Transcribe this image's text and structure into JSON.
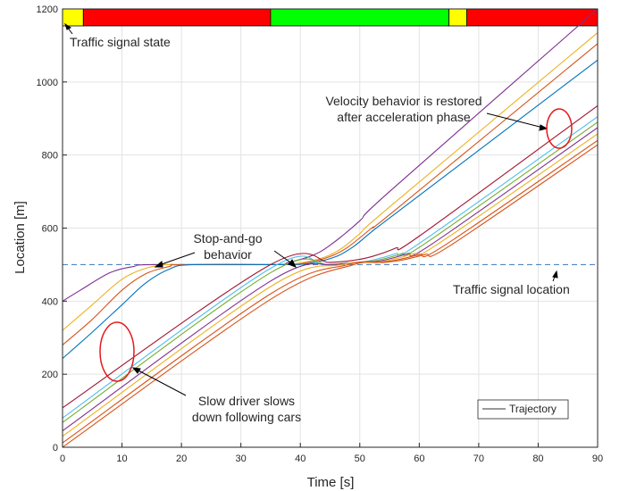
{
  "chart_data": {
    "type": "line",
    "title": "",
    "xlabel": "Time [s]",
    "ylabel": "Location [m]",
    "xlim": [
      0,
      90
    ],
    "ylim": [
      0,
      1200
    ],
    "xticks": [
      0,
      10,
      20,
      30,
      40,
      50,
      60,
      70,
      80,
      90
    ],
    "yticks": [
      0,
      200,
      400,
      600,
      800,
      1000,
      1200
    ],
    "grid": true,
    "legend": {
      "position": "bottom-right",
      "entries": [
        "Trajectory"
      ]
    },
    "signal_location": 500,
    "signal_phases": [
      {
        "start": 0,
        "end": 3.5,
        "state": "yellow",
        "color": "#ffff00"
      },
      {
        "start": 3.5,
        "end": 35,
        "state": "red",
        "color": "#ff0000"
      },
      {
        "start": 35,
        "end": 65,
        "state": "green",
        "color": "#00ff00"
      },
      {
        "start": 65,
        "end": 68,
        "state": "yellow",
        "color": "#ffff00"
      },
      {
        "start": 68,
        "end": 90,
        "state": "red",
        "color": "#ff0000"
      }
    ],
    "series": [
      {
        "color": "#7e2f8e",
        "points": [
          [
            0,
            400
          ],
          [
            3,
            430
          ],
          [
            8,
            478
          ],
          [
            12,
            495
          ],
          [
            15,
            500
          ],
          [
            35,
            500
          ],
          [
            38,
            506
          ],
          [
            42,
            525
          ],
          [
            45,
            553
          ],
          [
            50,
            620
          ],
          [
            55,
            700
          ],
          [
            90,
            1200
          ]
        ]
      },
      {
        "color": "#edb120",
        "points": [
          [
            0,
            320
          ],
          [
            5,
            390
          ],
          [
            10,
            460
          ],
          [
            14,
            490
          ],
          [
            17,
            499
          ],
          [
            19,
            500
          ],
          [
            36,
            500
          ],
          [
            40,
            505
          ],
          [
            44,
            520
          ],
          [
            47,
            545
          ],
          [
            50,
            585
          ],
          [
            55,
            658
          ],
          [
            90,
            1135
          ]
        ]
      },
      {
        "color": "#d95319",
        "points": [
          [
            0,
            280
          ],
          [
            5,
            350
          ],
          [
            10,
            430
          ],
          [
            14,
            475
          ],
          [
            18,
            495
          ],
          [
            20,
            500
          ],
          [
            37,
            500
          ],
          [
            41,
            505
          ],
          [
            45,
            522
          ],
          [
            48,
            548
          ],
          [
            52,
            600
          ],
          [
            56,
            650
          ],
          [
            90,
            1105
          ]
        ]
      },
      {
        "color": "#0072bd",
        "points": [
          [
            0,
            243
          ],
          [
            5,
            315
          ],
          [
            10,
            390
          ],
          [
            14,
            450
          ],
          [
            18,
            488
          ],
          [
            22,
            500
          ],
          [
            38,
            500
          ],
          [
            42,
            505
          ],
          [
            46,
            522
          ],
          [
            49,
            550
          ],
          [
            52,
            590
          ],
          [
            56,
            640
          ],
          [
            90,
            1060
          ]
        ]
      },
      {
        "color": "#a2142f",
        "points": [
          [
            0,
            108
          ],
          [
            35,
            500
          ],
          [
            45,
            506
          ],
          [
            49,
            512
          ],
          [
            52,
            522
          ],
          [
            56,
            545
          ],
          [
            60,
            578
          ],
          [
            90,
            935
          ]
        ]
      },
      {
        "color": "#4dbeee",
        "points": [
          [
            0,
            80
          ],
          [
            35,
            490
          ],
          [
            44,
            500
          ],
          [
            49,
            505
          ],
          [
            52,
            512
          ],
          [
            56,
            530
          ],
          [
            60,
            558
          ],
          [
            90,
            905
          ]
        ]
      },
      {
        "color": "#77ac30",
        "points": [
          [
            0,
            68
          ],
          [
            35,
            478
          ],
          [
            45,
            500
          ],
          [
            50,
            506
          ],
          [
            53,
            512
          ],
          [
            57,
            530
          ],
          [
            61,
            558
          ],
          [
            90,
            890
          ]
        ]
      },
      {
        "color": "#7e2f8e",
        "points": [
          [
            0,
            45
          ],
          [
            35,
            455
          ],
          [
            46,
            500
          ],
          [
            51,
            506
          ],
          [
            54,
            512
          ],
          [
            58,
            530
          ],
          [
            62,
            555
          ],
          [
            90,
            875
          ]
        ]
      },
      {
        "color": "#edb120",
        "points": [
          [
            0,
            30
          ],
          [
            35,
            440
          ],
          [
            47,
            500
          ],
          [
            52,
            506
          ],
          [
            55,
            512
          ],
          [
            59,
            530
          ],
          [
            63,
            555
          ],
          [
            90,
            858
          ]
        ]
      },
      {
        "color": "#d95319",
        "points": [
          [
            0,
            12
          ],
          [
            35,
            420
          ],
          [
            48,
            500
          ],
          [
            53,
            506
          ],
          [
            56,
            512
          ],
          [
            60,
            528
          ],
          [
            64,
            550
          ],
          [
            90,
            840
          ]
        ]
      },
      {
        "color": "#d95319",
        "points": [
          [
            0,
            0
          ],
          [
            35,
            405
          ],
          [
            49,
            500
          ],
          [
            54,
            506
          ],
          [
            57,
            512
          ],
          [
            61,
            528
          ],
          [
            65,
            550
          ],
          [
            90,
            828
          ]
        ]
      }
    ],
    "annotations": {
      "signal_state": "Traffic signal state",
      "stop_go_1": "Stop-and-go",
      "stop_go_2": "behavior",
      "velocity_1": "Velocity behavior is restored",
      "velocity_2": "after acceleration phase",
      "signal_location": "Traffic signal location",
      "slow_1": "Slow driver slows",
      "slow_2": "down following cars"
    }
  }
}
